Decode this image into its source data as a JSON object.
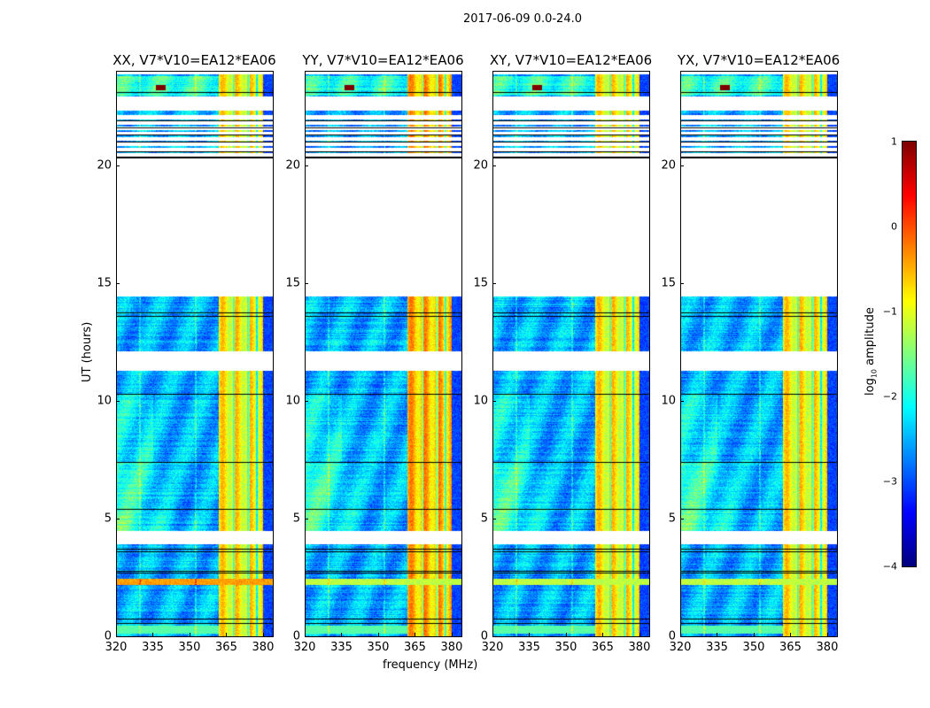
{
  "chart_data": {
    "type": "heatmap",
    "title": "2017-06-09 0.0-24.0",
    "xlabel": "frequency (MHz)",
    "ylabel": "UT (hours)",
    "xlim": [
      320,
      384
    ],
    "ylim": [
      0,
      24
    ],
    "xticks": [
      "320",
      "335",
      "350",
      "365",
      "380"
    ],
    "xtick_values": [
      320,
      335,
      350,
      365,
      380
    ],
    "yticks": [
      "0",
      "5",
      "10",
      "15",
      "20"
    ],
    "ytick_values": [
      0,
      5,
      10,
      15,
      20
    ],
    "panels": [
      {
        "title": "XX, V7*V10=EA12*EA06",
        "pol": "XX"
      },
      {
        "title": "YY, V7*V10=EA12*EA06",
        "pol": "YY"
      },
      {
        "title": "XY, V7*V10=EA12*EA06",
        "pol": "XY"
      },
      {
        "title": "YX, V7*V10=EA12*EA06",
        "pol": "YX"
      }
    ],
    "data_ut_ranges": [
      [
        0,
        3.93
      ],
      [
        4.46,
        11.27
      ],
      [
        12.1,
        14.46
      ],
      [
        20.2,
        22.05
      ],
      [
        22.15,
        22.35
      ],
      [
        22.95,
        23.9
      ]
    ],
    "flag_lines_ut": [
      0.55,
      0.75,
      2.7,
      2.75,
      3.6,
      3.7,
      5.4,
      7.4,
      10.3,
      13.6,
      13.75,
      20.35,
      20.6,
      21.0,
      21.3,
      21.6,
      21.9,
      22.9,
      23.1
    ],
    "rfi_band_mhz": [
      362,
      380
    ],
    "colorbar": {
      "label": "log10 amplitude",
      "label_main": "log",
      "label_sub": "10",
      "label_rest": " amplitude",
      "range": [
        -4,
        1
      ],
      "ticks": [
        "1",
        "0",
        "−1",
        "−2",
        "−3",
        "−4"
      ],
      "tick_values": [
        1,
        0,
        -1,
        -2,
        -3,
        -4
      ],
      "colormap": "jet"
    }
  }
}
